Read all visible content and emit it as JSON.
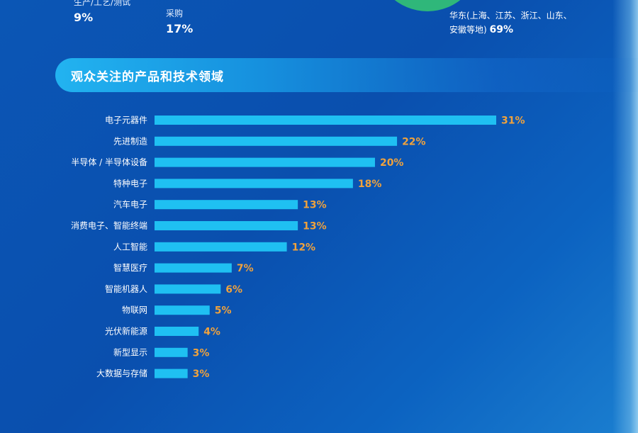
{
  "top_stats": [
    {
      "label": "生产/工艺/测试",
      "value": "9%"
    },
    {
      "label": "采购",
      "value": "17%"
    }
  ],
  "region": {
    "line1": "华东(上海、江苏、浙江、山东、",
    "line2": "安徽等地)",
    "pct": "69%"
  },
  "section": {
    "title": "观众关注的产品和技术领域"
  },
  "colors": {
    "bar": "#1fc0f2",
    "value_label": "#f0a23c",
    "category_label": "#ffffff",
    "accent_green": "#2fb77a"
  },
  "chart_data": {
    "type": "bar",
    "orientation": "horizontal",
    "title": "观众关注的产品和技术领域",
    "categories": [
      "电子元器件",
      "先进制造",
      "半导体 / 半导体设备",
      "特种电子",
      "汽车电子",
      "消费电子、智能终端",
      "人工智能",
      "智慧医疗",
      "智能机器人",
      "物联网",
      "光伏新能源",
      "新型显示",
      "大数据与存储"
    ],
    "values": [
      31,
      22,
      20,
      18,
      13,
      13,
      12,
      7,
      6,
      5,
      4,
      3,
      3
    ],
    "labels": [
      "31%",
      "22%",
      "20%",
      "18%",
      "13%",
      "13%",
      "12%",
      "7%",
      "6%",
      "5%",
      "4%",
      "3%",
      "3%"
    ],
    "unit": "%",
    "xlim": [
      0,
      31
    ],
    "grid": false,
    "legend": "none"
  }
}
